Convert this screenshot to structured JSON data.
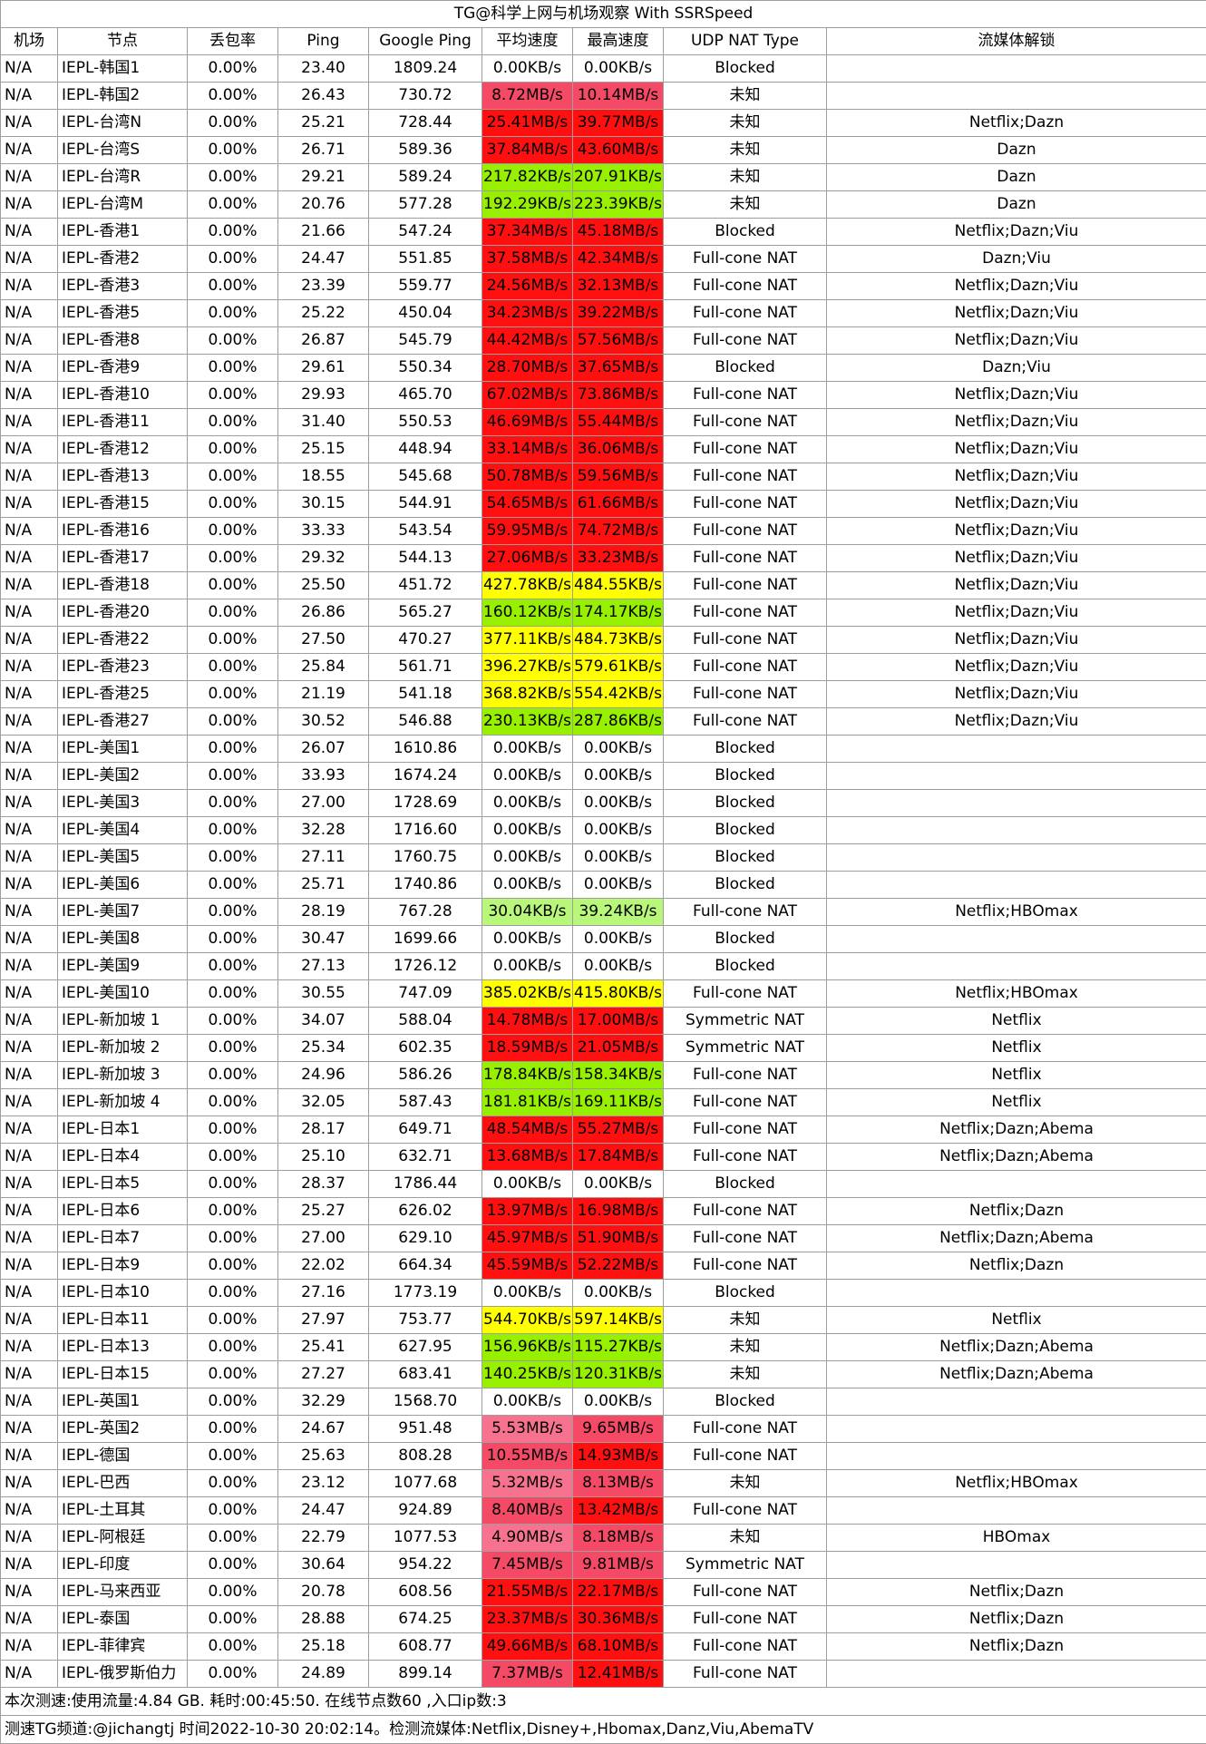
{
  "title": "TG@科学上网与机场观察 With SSRSpeed",
  "headers": [
    "机场",
    "节点",
    "丢包率",
    "Ping",
    "Google Ping",
    "平均速度",
    "最高速度",
    "UDP NAT Type",
    "流媒体解锁"
  ],
  "speed_colors": {
    "zero": "#ffffff",
    "kb_green": "#96f000",
    "kb_lightgreen": "#b8f77a",
    "kb_yellow": "#ffff00",
    "mb_pink": "#f7728f",
    "mb_rose": "#f44a66",
    "mb_red": "#ff1010"
  },
  "rows": [
    [
      "N/A",
      "IEPL-韩国1",
      "0.00%",
      "23.40",
      "1809.24",
      "0.00KB/s",
      "zero",
      "0.00KB/s",
      "zero",
      "Blocked",
      ""
    ],
    [
      "N/A",
      "IEPL-韩国2",
      "0.00%",
      "26.43",
      "730.72",
      "8.72MB/s",
      "mb_rose",
      "10.14MB/s",
      "mb_rose",
      "未知",
      ""
    ],
    [
      "N/A",
      "IEPL-台湾N",
      "0.00%",
      "25.21",
      "728.44",
      "25.41MB/s",
      "mb_red",
      "39.77MB/s",
      "mb_red",
      "未知",
      "Netflix;Dazn"
    ],
    [
      "N/A",
      "IEPL-台湾S",
      "0.00%",
      "26.71",
      "589.36",
      "37.84MB/s",
      "mb_red",
      "43.60MB/s",
      "mb_red",
      "未知",
      "Dazn"
    ],
    [
      "N/A",
      "IEPL-台湾R",
      "0.00%",
      "29.21",
      "589.24",
      "217.82KB/s",
      "kb_green",
      "207.91KB/s",
      "kb_green",
      "未知",
      "Dazn"
    ],
    [
      "N/A",
      "IEPL-台湾M",
      "0.00%",
      "20.76",
      "577.28",
      "192.29KB/s",
      "kb_green",
      "223.39KB/s",
      "kb_green",
      "未知",
      "Dazn"
    ],
    [
      "N/A",
      "IEPL-香港1",
      "0.00%",
      "21.66",
      "547.24",
      "37.34MB/s",
      "mb_red",
      "45.18MB/s",
      "mb_red",
      "Blocked",
      "Netflix;Dazn;Viu"
    ],
    [
      "N/A",
      "IEPL-香港2",
      "0.00%",
      "24.47",
      "551.85",
      "37.58MB/s",
      "mb_red",
      "42.34MB/s",
      "mb_red",
      "Full-cone NAT",
      "Dazn;Viu"
    ],
    [
      "N/A",
      "IEPL-香港3",
      "0.00%",
      "23.39",
      "559.77",
      "24.56MB/s",
      "mb_red",
      "32.13MB/s",
      "mb_red",
      "Full-cone NAT",
      "Netflix;Dazn;Viu"
    ],
    [
      "N/A",
      "IEPL-香港5",
      "0.00%",
      "25.22",
      "450.04",
      "34.23MB/s",
      "mb_red",
      "39.22MB/s",
      "mb_red",
      "Full-cone NAT",
      "Netflix;Dazn;Viu"
    ],
    [
      "N/A",
      "IEPL-香港8",
      "0.00%",
      "26.87",
      "545.79",
      "44.42MB/s",
      "mb_red",
      "57.56MB/s",
      "mb_red",
      "Full-cone NAT",
      "Netflix;Dazn;Viu"
    ],
    [
      "N/A",
      "IEPL-香港9",
      "0.00%",
      "29.61",
      "550.34",
      "28.70MB/s",
      "mb_red",
      "37.65MB/s",
      "mb_red",
      "Blocked",
      "Dazn;Viu"
    ],
    [
      "N/A",
      "IEPL-香港10",
      "0.00%",
      "29.93",
      "465.70",
      "67.02MB/s",
      "mb_red",
      "73.86MB/s",
      "mb_red",
      "Full-cone NAT",
      "Netflix;Dazn;Viu"
    ],
    [
      "N/A",
      "IEPL-香港11",
      "0.00%",
      "31.40",
      "550.53",
      "46.69MB/s",
      "mb_red",
      "55.44MB/s",
      "mb_red",
      "Full-cone NAT",
      "Netflix;Dazn;Viu"
    ],
    [
      "N/A",
      "IEPL-香港12",
      "0.00%",
      "25.15",
      "448.94",
      "33.14MB/s",
      "mb_red",
      "36.06MB/s",
      "mb_red",
      "Full-cone NAT",
      "Netflix;Dazn;Viu"
    ],
    [
      "N/A",
      "IEPL-香港13",
      "0.00%",
      "18.55",
      "545.68",
      "50.78MB/s",
      "mb_red",
      "59.56MB/s",
      "mb_red",
      "Full-cone NAT",
      "Netflix;Dazn;Viu"
    ],
    [
      "N/A",
      "IEPL-香港15",
      "0.00%",
      "30.15",
      "544.91",
      "54.65MB/s",
      "mb_red",
      "61.66MB/s",
      "mb_red",
      "Full-cone NAT",
      "Netflix;Dazn;Viu"
    ],
    [
      "N/A",
      "IEPL-香港16",
      "0.00%",
      "33.33",
      "543.54",
      "59.95MB/s",
      "mb_red",
      "74.72MB/s",
      "mb_red",
      "Full-cone NAT",
      "Netflix;Dazn;Viu"
    ],
    [
      "N/A",
      "IEPL-香港17",
      "0.00%",
      "29.32",
      "544.13",
      "27.06MB/s",
      "mb_red",
      "33.23MB/s",
      "mb_red",
      "Full-cone NAT",
      "Netflix;Dazn;Viu"
    ],
    [
      "N/A",
      "IEPL-香港18",
      "0.00%",
      "25.50",
      "451.72",
      "427.78KB/s",
      "kb_yellow",
      "484.55KB/s",
      "kb_yellow",
      "Full-cone NAT",
      "Netflix;Dazn;Viu"
    ],
    [
      "N/A",
      "IEPL-香港20",
      "0.00%",
      "26.86",
      "565.27",
      "160.12KB/s",
      "kb_green",
      "174.17KB/s",
      "kb_green",
      "Full-cone NAT",
      "Netflix;Dazn;Viu"
    ],
    [
      "N/A",
      "IEPL-香港22",
      "0.00%",
      "27.50",
      "470.27",
      "377.11KB/s",
      "kb_yellow",
      "484.73KB/s",
      "kb_yellow",
      "Full-cone NAT",
      "Netflix;Dazn;Viu"
    ],
    [
      "N/A",
      "IEPL-香港23",
      "0.00%",
      "25.84",
      "561.71",
      "396.27KB/s",
      "kb_yellow",
      "579.61KB/s",
      "kb_yellow",
      "Full-cone NAT",
      "Netflix;Dazn;Viu"
    ],
    [
      "N/A",
      "IEPL-香港25",
      "0.00%",
      "21.19",
      "541.18",
      "368.82KB/s",
      "kb_yellow",
      "554.42KB/s",
      "kb_yellow",
      "Full-cone NAT",
      "Netflix;Dazn;Viu"
    ],
    [
      "N/A",
      "IEPL-香港27",
      "0.00%",
      "30.52",
      "546.88",
      "230.13KB/s",
      "kb_green",
      "287.86KB/s",
      "kb_green",
      "Full-cone NAT",
      "Netflix;Dazn;Viu"
    ],
    [
      "N/A",
      "IEPL-美国1",
      "0.00%",
      "26.07",
      "1610.86",
      "0.00KB/s",
      "zero",
      "0.00KB/s",
      "zero",
      "Blocked",
      ""
    ],
    [
      "N/A",
      "IEPL-美国2",
      "0.00%",
      "33.93",
      "1674.24",
      "0.00KB/s",
      "zero",
      "0.00KB/s",
      "zero",
      "Blocked",
      ""
    ],
    [
      "N/A",
      "IEPL-美国3",
      "0.00%",
      "27.00",
      "1728.69",
      "0.00KB/s",
      "zero",
      "0.00KB/s",
      "zero",
      "Blocked",
      ""
    ],
    [
      "N/A",
      "IEPL-美国4",
      "0.00%",
      "32.28",
      "1716.60",
      "0.00KB/s",
      "zero",
      "0.00KB/s",
      "zero",
      "Blocked",
      ""
    ],
    [
      "N/A",
      "IEPL-美国5",
      "0.00%",
      "27.11",
      "1760.75",
      "0.00KB/s",
      "zero",
      "0.00KB/s",
      "zero",
      "Blocked",
      ""
    ],
    [
      "N/A",
      "IEPL-美国6",
      "0.00%",
      "25.71",
      "1740.86",
      "0.00KB/s",
      "zero",
      "0.00KB/s",
      "zero",
      "Blocked",
      ""
    ],
    [
      "N/A",
      "IEPL-美国7",
      "0.00%",
      "28.19",
      "767.28",
      "30.04KB/s",
      "kb_lightgreen",
      "39.24KB/s",
      "kb_lightgreen",
      "Full-cone NAT",
      "Netflix;HBOmax"
    ],
    [
      "N/A",
      "IEPL-美国8",
      "0.00%",
      "30.47",
      "1699.66",
      "0.00KB/s",
      "zero",
      "0.00KB/s",
      "zero",
      "Blocked",
      ""
    ],
    [
      "N/A",
      "IEPL-美国9",
      "0.00%",
      "27.13",
      "1726.12",
      "0.00KB/s",
      "zero",
      "0.00KB/s",
      "zero",
      "Blocked",
      ""
    ],
    [
      "N/A",
      "IEPL-美国10",
      "0.00%",
      "30.55",
      "747.09",
      "385.02KB/s",
      "kb_yellow",
      "415.80KB/s",
      "kb_yellow",
      "Full-cone NAT",
      "Netflix;HBOmax"
    ],
    [
      "N/A",
      "IEPL-新加坡 1",
      "0.00%",
      "34.07",
      "588.04",
      "14.78MB/s",
      "mb_red",
      "17.00MB/s",
      "mb_red",
      "Symmetric NAT",
      "Netflix"
    ],
    [
      "N/A",
      "IEPL-新加坡 2",
      "0.00%",
      "25.34",
      "602.35",
      "18.59MB/s",
      "mb_red",
      "21.05MB/s",
      "mb_red",
      "Symmetric NAT",
      "Netflix"
    ],
    [
      "N/A",
      "IEPL-新加坡 3",
      "0.00%",
      "24.96",
      "586.26",
      "178.84KB/s",
      "kb_green",
      "158.34KB/s",
      "kb_green",
      "Full-cone NAT",
      "Netflix"
    ],
    [
      "N/A",
      "IEPL-新加坡 4",
      "0.00%",
      "32.05",
      "587.43",
      "181.81KB/s",
      "kb_green",
      "169.11KB/s",
      "kb_green",
      "Full-cone NAT",
      "Netflix"
    ],
    [
      "N/A",
      "IEPL-日本1",
      "0.00%",
      "28.17",
      "649.71",
      "48.54MB/s",
      "mb_red",
      "55.27MB/s",
      "mb_red",
      "Full-cone NAT",
      "Netflix;Dazn;Abema"
    ],
    [
      "N/A",
      "IEPL-日本4",
      "0.00%",
      "25.10",
      "632.71",
      "13.68MB/s",
      "mb_red",
      "17.84MB/s",
      "mb_red",
      "Full-cone NAT",
      "Netflix;Dazn;Abema"
    ],
    [
      "N/A",
      "IEPL-日本5",
      "0.00%",
      "28.37",
      "1786.44",
      "0.00KB/s",
      "zero",
      "0.00KB/s",
      "zero",
      "Blocked",
      ""
    ],
    [
      "N/A",
      "IEPL-日本6",
      "0.00%",
      "25.27",
      "626.02",
      "13.97MB/s",
      "mb_red",
      "16.98MB/s",
      "mb_red",
      "Full-cone NAT",
      "Netflix;Dazn"
    ],
    [
      "N/A",
      "IEPL-日本7",
      "0.00%",
      "27.00",
      "629.10",
      "45.97MB/s",
      "mb_red",
      "51.90MB/s",
      "mb_red",
      "Full-cone NAT",
      "Netflix;Dazn;Abema"
    ],
    [
      "N/A",
      "IEPL-日本9",
      "0.00%",
      "22.02",
      "664.34",
      "45.59MB/s",
      "mb_red",
      "52.22MB/s",
      "mb_red",
      "Full-cone NAT",
      "Netflix;Dazn"
    ],
    [
      "N/A",
      "IEPL-日本10",
      "0.00%",
      "27.16",
      "1773.19",
      "0.00KB/s",
      "zero",
      "0.00KB/s",
      "zero",
      "Blocked",
      ""
    ],
    [
      "N/A",
      "IEPL-日本11",
      "0.00%",
      "27.97",
      "753.77",
      "544.70KB/s",
      "kb_yellow",
      "597.14KB/s",
      "kb_yellow",
      "未知",
      "Netflix"
    ],
    [
      "N/A",
      "IEPL-日本13",
      "0.00%",
      "25.41",
      "627.95",
      "156.96KB/s",
      "kb_green",
      "115.27KB/s",
      "kb_green",
      "未知",
      "Netflix;Dazn;Abema"
    ],
    [
      "N/A",
      "IEPL-日本15",
      "0.00%",
      "27.27",
      "683.41",
      "140.25KB/s",
      "kb_green",
      "120.31KB/s",
      "kb_green",
      "未知",
      "Netflix;Dazn;Abema"
    ],
    [
      "N/A",
      "IEPL-英国1",
      "0.00%",
      "32.29",
      "1568.70",
      "0.00KB/s",
      "zero",
      "0.00KB/s",
      "zero",
      "Blocked",
      ""
    ],
    [
      "N/A",
      "IEPL-英国2",
      "0.00%",
      "24.67",
      "951.48",
      "5.53MB/s",
      "mb_pink",
      "9.65MB/s",
      "mb_rose",
      "Full-cone NAT",
      ""
    ],
    [
      "N/A",
      "IEPL-德国",
      "0.00%",
      "25.63",
      "808.28",
      "10.55MB/s",
      "mb_rose",
      "14.93MB/s",
      "mb_red",
      "Full-cone NAT",
      ""
    ],
    [
      "N/A",
      "IEPL-巴西",
      "0.00%",
      "23.12",
      "1077.68",
      "5.32MB/s",
      "mb_pink",
      "8.13MB/s",
      "mb_rose",
      "未知",
      "Netflix;HBOmax"
    ],
    [
      "N/A",
      "IEPL-土耳其",
      "0.00%",
      "24.47",
      "924.89",
      "8.40MB/s",
      "mb_rose",
      "13.42MB/s",
      "mb_red",
      "Full-cone NAT",
      ""
    ],
    [
      "N/A",
      "IEPL-阿根廷",
      "0.00%",
      "22.79",
      "1077.53",
      "4.90MB/s",
      "mb_pink",
      "8.18MB/s",
      "mb_rose",
      "未知",
      "HBOmax"
    ],
    [
      "N/A",
      "IEPL-印度",
      "0.00%",
      "30.64",
      "954.22",
      "7.45MB/s",
      "mb_rose",
      "9.81MB/s",
      "mb_rose",
      "Symmetric NAT",
      ""
    ],
    [
      "N/A",
      "IEPL-马来西亚",
      "0.00%",
      "20.78",
      "608.56",
      "21.55MB/s",
      "mb_red",
      "22.17MB/s",
      "mb_red",
      "Full-cone NAT",
      "Netflix;Dazn"
    ],
    [
      "N/A",
      "IEPL-泰国",
      "0.00%",
      "28.88",
      "674.25",
      "23.37MB/s",
      "mb_red",
      "30.36MB/s",
      "mb_red",
      "Full-cone NAT",
      "Netflix;Dazn"
    ],
    [
      "N/A",
      "IEPL-菲律宾",
      "0.00%",
      "25.18",
      "608.77",
      "49.66MB/s",
      "mb_red",
      "68.10MB/s",
      "mb_red",
      "Full-cone NAT",
      "Netflix;Dazn"
    ],
    [
      "N/A",
      "IEPL-俄罗斯伯力",
      "0.00%",
      "24.89",
      "899.14",
      "7.37MB/s",
      "mb_rose",
      "12.41MB/s",
      "mb_red",
      "Full-cone NAT",
      ""
    ]
  ],
  "footer": {
    "line1": "本次测速:使用流量:4.84 GB. 耗时:00:45:50. 在线节点数60 ,入口ip数:3",
    "line2": "测速TG频道:@jichangtj 时间2022-10-30 20:02:14。检测流媒体:Netflix,Disney+,Hbomax,Danz,Viu,AbemaTV"
  }
}
